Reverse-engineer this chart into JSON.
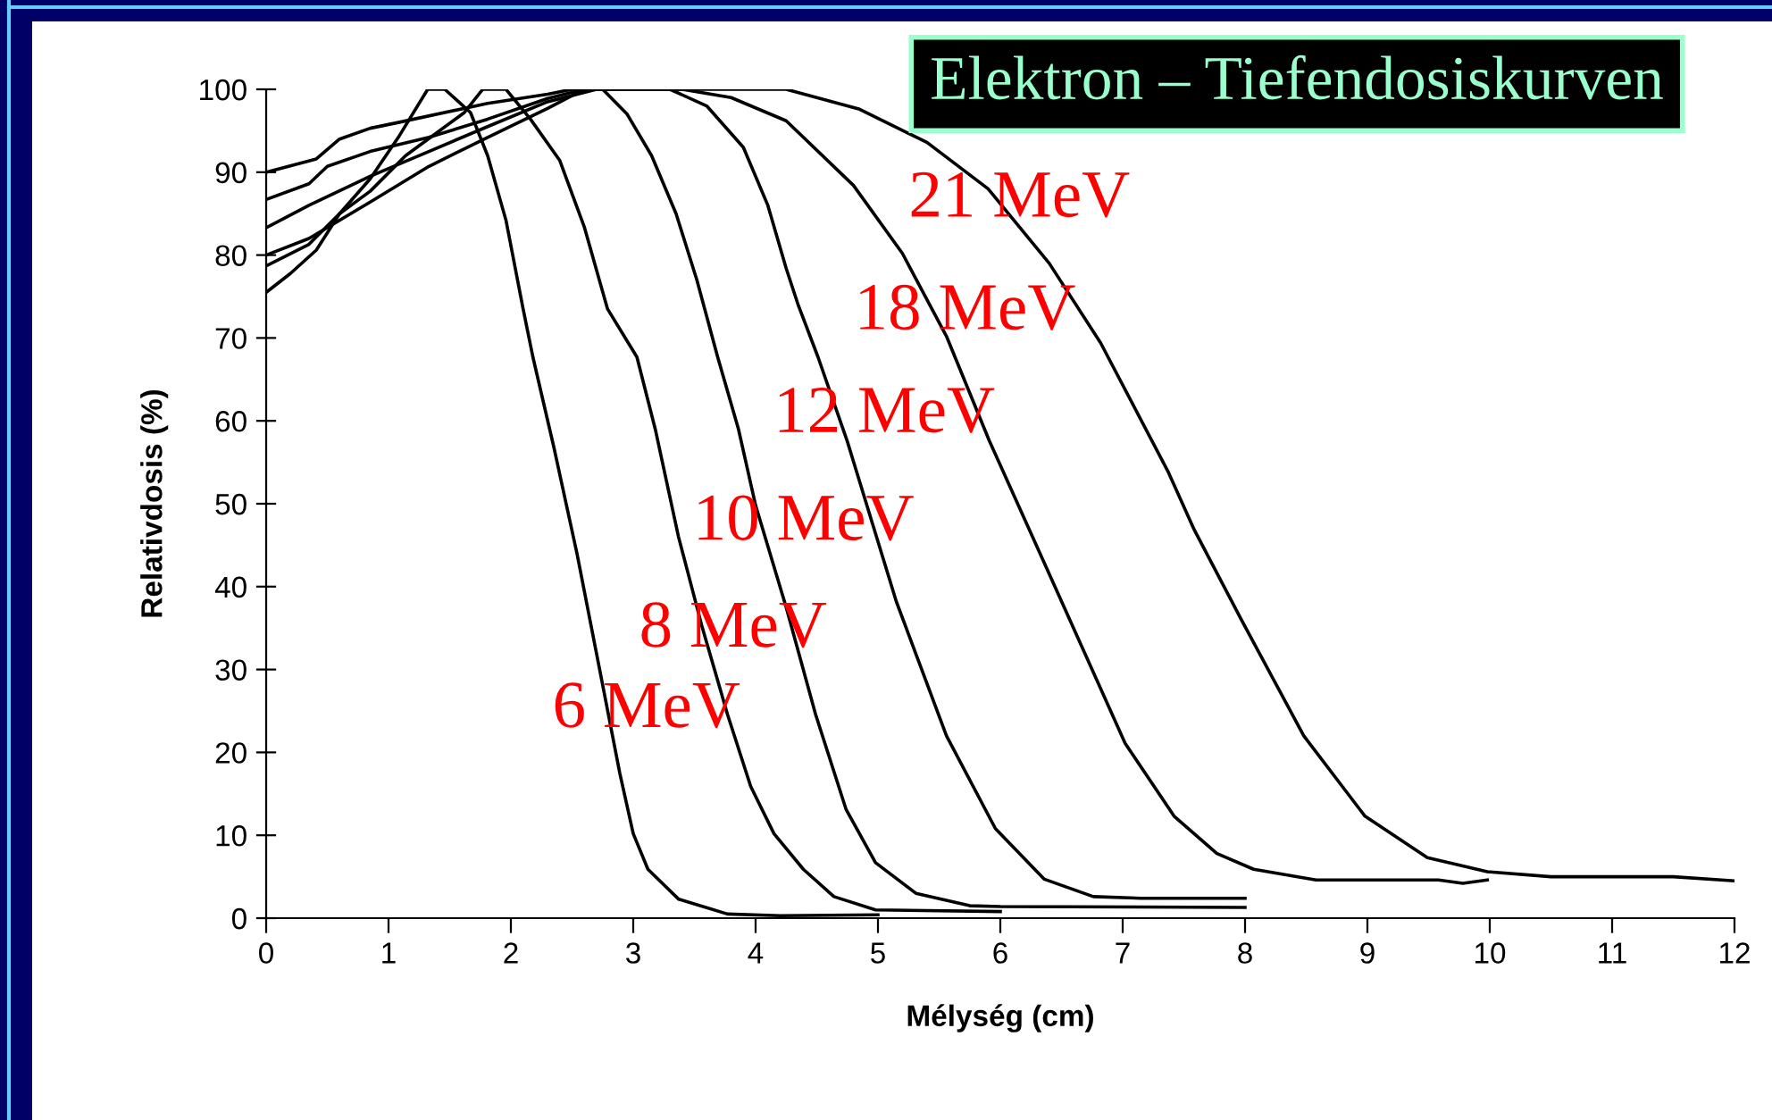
{
  "chart_data": {
    "type": "line",
    "title": "Elektron – Tiefendosiskurven",
    "xlabel": "Mélység (cm)",
    "ylabel": "Relativdosis (%)",
    "xlim": [
      0,
      12
    ],
    "ylim": [
      0,
      100
    ],
    "xticks": [
      0,
      1,
      2,
      3,
      4,
      5,
      6,
      7,
      8,
      9,
      10,
      11,
      12
    ],
    "yticks": [
      0,
      10,
      20,
      30,
      40,
      50,
      60,
      70,
      80,
      90,
      100
    ],
    "grid": false,
    "marker": "none",
    "line_style": "solid",
    "series": [
      {
        "color": "#000000",
        "x": [
          0,
          0.2,
          0.41,
          0.6,
          0.85,
          1.08,
          1.32,
          1.46,
          1.67,
          1.81,
          1.96,
          2.1,
          2.18,
          2.35,
          2.54,
          2.74,
          2.89,
          3.0,
          3.12,
          3.37,
          3.77,
          4.2,
          5.0
        ],
        "values": [
          75.5,
          77.8,
          80.6,
          85,
          89.2,
          94.2,
          100,
          100,
          97.2,
          92,
          84.2,
          73.5,
          67.7,
          56.9,
          44,
          28.9,
          17.5,
          10.2,
          5.9,
          2.3,
          0.5,
          0.3,
          0.4
        ]
      },
      {
        "color": "#000000",
        "x": [
          0,
          0.35,
          0.6,
          0.85,
          1.14,
          1.62,
          1.77,
          1.96,
          2.16,
          2.4,
          2.6,
          2.79,
          3.03,
          3.18,
          3.37,
          3.56,
          3.77,
          3.96,
          4.15,
          4.39,
          4.64,
          4.98,
          6.0
        ],
        "values": [
          78.7,
          81.3,
          85,
          87.7,
          92,
          97.2,
          100,
          100,
          96.4,
          91.4,
          83.4,
          73.5,
          67.7,
          59,
          46,
          35.3,
          24.6,
          15.9,
          10.2,
          5.9,
          2.6,
          1.0,
          0.8
        ]
      },
      {
        "color": "#000000",
        "x": [
          0,
          0.35,
          0.85,
          1.33,
          1.81,
          2.3,
          2.6,
          2.75,
          2.95,
          3.15,
          3.35,
          3.52,
          3.69,
          3.86,
          4.0,
          4.25,
          4.49,
          4.74,
          4.98,
          5.31,
          5.75,
          6.0,
          8.0
        ],
        "values": [
          80,
          82,
          86.4,
          90.7,
          94.2,
          97.7,
          100,
          100,
          97,
          92,
          85,
          77,
          67.7,
          59,
          49.8,
          37.5,
          24.6,
          13.1,
          6.7,
          3.0,
          1.5,
          1.4,
          1.3
        ]
      },
      {
        "color": "#000000",
        "x": [
          0,
          0.35,
          0.85,
          1.33,
          1.81,
          2.3,
          2.7,
          3.3,
          3.6,
          3.9,
          4.1,
          4.25,
          4.35,
          4.51,
          4.75,
          5.15,
          5.56,
          5.96,
          6.36,
          6.76,
          7.15,
          8.0
        ],
        "values": [
          83.3,
          86,
          89.5,
          92.5,
          95.5,
          98.5,
          100,
          100,
          98,
          93,
          86,
          78.4,
          73.9,
          67.7,
          57.5,
          38.2,
          22,
          10.8,
          4.7,
          2.6,
          2.4,
          2.4
        ]
      },
      {
        "color": "#000000",
        "x": [
          0,
          0.35,
          0.5,
          0.85,
          1.33,
          1.81,
          2.3,
          2.6,
          3.4,
          3.8,
          4.25,
          4.8,
          5.2,
          5.56,
          5.91,
          6.41,
          7.02,
          7.42,
          7.77,
          8.07,
          8.58,
          9.58,
          9.78,
          9.98
        ],
        "values": [
          86.7,
          88.6,
          90.7,
          92.5,
          94.2,
          96.4,
          98.9,
          100,
          100,
          99,
          96.2,
          88.4,
          80.2,
          70.2,
          57.6,
          41.2,
          21.1,
          12.3,
          7.8,
          5.9,
          4.6,
          4.6,
          4.2,
          4.6
        ]
      },
      {
        "color": "#000000",
        "x": [
          0,
          0.41,
          0.6,
          0.85,
          1.08,
          1.81,
          2.3,
          2.5,
          3.5,
          4.25,
          4.85,
          5.4,
          5.9,
          6.4,
          6.82,
          7.37,
          7.58,
          7.97,
          8.48,
          8.98,
          9.49,
          9.98,
          10.5,
          11.5,
          12
        ],
        "values": [
          90,
          91.6,
          94,
          95.3,
          96,
          98.3,
          99.4,
          100,
          100,
          100,
          97.6,
          93.6,
          88,
          79,
          69.4,
          53.9,
          47,
          36,
          22,
          12.3,
          7.3,
          5.6,
          5.0,
          5.0,
          4.5
        ]
      }
    ],
    "annotations": [
      "21 MeV",
      "18 MeV",
      "12 MeV",
      "10 MeV",
      "8 MeV",
      "6 MeV"
    ]
  }
}
